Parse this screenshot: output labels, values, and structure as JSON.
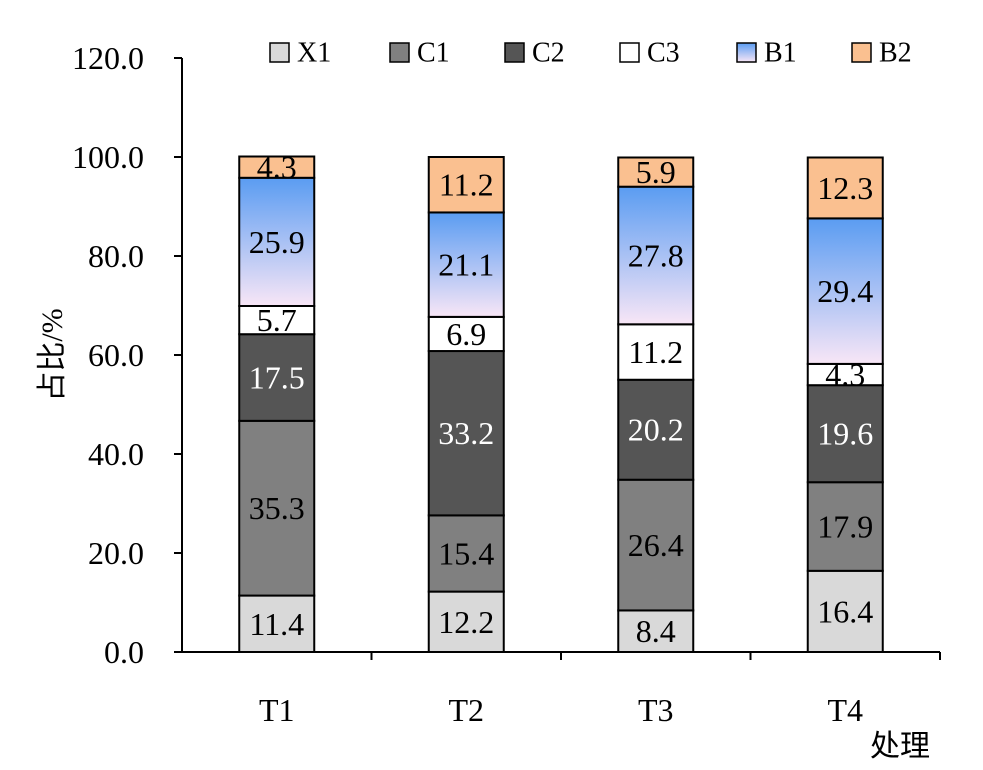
{
  "chart_data": {
    "type": "bar",
    "stacked": true,
    "categories": [
      "T1",
      "T2",
      "T3",
      "T4"
    ],
    "series": [
      {
        "name": "X1",
        "color": "#d9d9d9",
        "label_color": "#000000",
        "values": [
          11.4,
          12.2,
          8.4,
          16.4
        ]
      },
      {
        "name": "C1",
        "color": "#808080",
        "label_color": "#000000",
        "values": [
          35.3,
          15.4,
          26.4,
          17.9
        ]
      },
      {
        "name": "C2",
        "color": "#555555",
        "label_color": "#ffffff",
        "values": [
          17.5,
          33.2,
          20.2,
          19.6
        ]
      },
      {
        "name": "C3",
        "color": "#ffffff",
        "label_color": "#000000",
        "values": [
          5.7,
          6.9,
          11.2,
          4.3
        ]
      },
      {
        "name": "B1",
        "color": "#5a9cf2",
        "color_light": "#f8e6f6",
        "gradient": true,
        "label_color": "#000000",
        "values": [
          25.9,
          21.1,
          27.8,
          29.4
        ]
      },
      {
        "name": "B2",
        "color": "#fac090",
        "label_color": "#000000",
        "values": [
          4.3,
          11.2,
          5.9,
          12.3
        ]
      }
    ],
    "ylim": [
      0,
      120
    ],
    "yticks": [
      "0.0",
      "20.0",
      "40.0",
      "60.0",
      "80.0",
      "100.0",
      "120.0"
    ],
    "ytick_values": [
      0,
      20,
      40,
      60,
      80,
      100,
      120
    ],
    "ylabel": "占比/%",
    "xlabel": "处理",
    "legend_position": "top",
    "grid": false
  }
}
